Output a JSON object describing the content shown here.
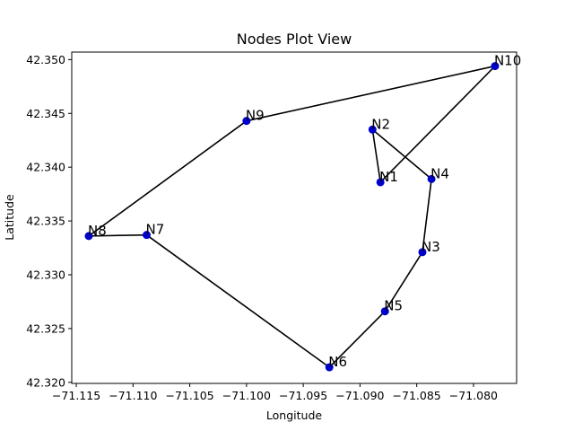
{
  "chart_data": {
    "type": "scatter",
    "title": "Nodes Plot View",
    "xlabel": "Longitude",
    "ylabel": "Latitude",
    "xlim": [
      -71.1154,
      -71.0762
    ],
    "ylim": [
      42.3199,
      42.3507
    ],
    "xticks": [
      -71.115,
      -71.11,
      -71.105,
      -71.1,
      -71.095,
      -71.09,
      -71.085,
      -71.08
    ],
    "xtick_labels": [
      "−71.115",
      "−71.110",
      "−71.105",
      "−71.100",
      "−71.095",
      "−71.090",
      "−71.085",
      "−71.080"
    ],
    "yticks": [
      42.32,
      42.325,
      42.33,
      42.335,
      42.34,
      42.345,
      42.35
    ],
    "ytick_labels": [
      "42.320",
      "42.325",
      "42.330",
      "42.335",
      "42.340",
      "42.345",
      "42.350"
    ],
    "grid": false,
    "colors": {
      "point": "#0000cc",
      "line": "#000000"
    },
    "nodes": [
      {
        "label": "N1",
        "x": -71.0882,
        "y": 42.3386
      },
      {
        "label": "N2",
        "x": -71.0889,
        "y": 42.3435
      },
      {
        "label": "N3",
        "x": -71.0845,
        "y": 42.3321
      },
      {
        "label": "N4",
        "x": -71.0837,
        "y": 42.3389
      },
      {
        "label": "N5",
        "x": -71.0878,
        "y": 42.3266
      },
      {
        "label": "N6",
        "x": -71.0927,
        "y": 42.3214
      },
      {
        "label": "N7",
        "x": -71.1088,
        "y": 42.3337
      },
      {
        "label": "N8",
        "x": -71.1139,
        "y": 42.3336
      },
      {
        "label": "N9",
        "x": -71.1,
        "y": 42.3443
      },
      {
        "label": "N10",
        "x": -71.0781,
        "y": 42.3494
      }
    ],
    "path": [
      "N1",
      "N2",
      "N4",
      "N3",
      "N5",
      "N6",
      "N7",
      "N8",
      "N9",
      "N10",
      "N1"
    ]
  }
}
